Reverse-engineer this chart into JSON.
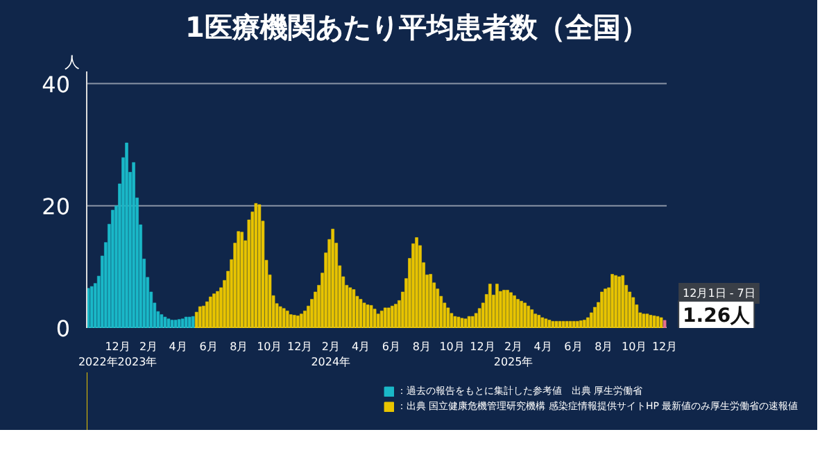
{
  "chart_data": {
    "type": "bar",
    "title": "1医療機関あたり平均患者数（全国）",
    "ylabel": "人",
    "xlim": [
      "2022-09-30",
      "2025-12-05"
    ],
    "ylim": [
      0,
      42
    ],
    "yticks": [
      0,
      20,
      40
    ],
    "xticks": [
      {
        "value": "2022-12-01",
        "label": "12月\n2022年2023年"
      },
      {
        "value": "2023-02-01",
        "label": "2月"
      },
      {
        "value": "2023-04-01",
        "label": "4月"
      },
      {
        "value": "2023-06-01",
        "label": "6月"
      },
      {
        "value": "2023-08-01",
        "label": "8月"
      },
      {
        "value": "2023-10-01",
        "label": "10月"
      },
      {
        "value": "2023-12-01",
        "label": "12月"
      },
      {
        "value": "2024-02-01",
        "label": "2月\n2024年"
      },
      {
        "value": "2024-04-01",
        "label": "4月"
      },
      {
        "value": "2024-06-01",
        "label": "6月"
      },
      {
        "value": "2024-08-01",
        "label": "8月"
      },
      {
        "value": "2024-10-01",
        "label": "10月"
      },
      {
        "value": "2024-12-01",
        "label": "12月"
      },
      {
        "value": "2025-02-01",
        "label": "2月\n2025年"
      },
      {
        "value": "2025-04-01",
        "label": "4月"
      },
      {
        "value": "2025-06-01",
        "label": "6月"
      },
      {
        "value": "2025-08-01",
        "label": "8月"
      },
      {
        "value": "2025-10-01",
        "label": "10月"
      },
      {
        "value": "2025-12-01",
        "label": "12月"
      }
    ],
    "grid": "y",
    "legend": "bottom",
    "series": [
      {
        "name": "：過去の報告をもとに集計した参考値　出典 厚生労働省",
        "color": "#1ab8c8",
        "x": [
          "2022-10-03",
          "2022-10-10",
          "2022-10-17",
          "2022-10-24",
          "2022-10-31",
          "2022-11-07",
          "2022-11-14",
          "2022-11-21",
          "2022-11-28",
          "2022-12-05",
          "2022-12-12",
          "2022-12-19",
          "2022-12-26",
          "2023-01-02",
          "2023-01-09",
          "2023-01-16",
          "2023-01-23",
          "2023-01-30",
          "2023-02-06",
          "2023-02-13",
          "2023-02-20",
          "2023-02-27",
          "2023-03-06",
          "2023-03-13",
          "2023-03-20",
          "2023-03-27",
          "2023-04-03",
          "2023-04-10",
          "2023-04-17",
          "2023-04-24",
          "2023-05-01"
        ],
        "values": [
          6.5,
          6.8,
          7.3,
          8.5,
          11.8,
          14.0,
          17.0,
          19.3,
          20.0,
          23.6,
          27.9,
          30.3,
          25.5,
          27.1,
          21.3,
          16.9,
          11.3,
          8.3,
          5.9,
          4.1,
          2.7,
          2.2,
          1.8,
          1.5,
          1.3,
          1.3,
          1.4,
          1.5,
          1.8,
          1.8,
          1.9
        ]
      },
      {
        "name": "：出典 国立健康危機管理研究機構 感染症情報提供サイトHP 最新値のみ厚生労働省の速報値",
        "color": "#e8c400",
        "x": [
          "2023-05-08",
          "2023-05-15",
          "2023-05-22",
          "2023-05-29",
          "2023-06-05",
          "2023-06-12",
          "2023-06-19",
          "2023-06-26",
          "2023-07-03",
          "2023-07-10",
          "2023-07-17",
          "2023-07-24",
          "2023-07-31",
          "2023-08-07",
          "2023-08-14",
          "2023-08-21",
          "2023-08-28",
          "2023-09-04",
          "2023-09-11",
          "2023-09-18",
          "2023-09-25",
          "2023-10-02",
          "2023-10-09",
          "2023-10-16",
          "2023-10-23",
          "2023-10-30",
          "2023-11-06",
          "2023-11-13",
          "2023-11-20",
          "2023-11-27",
          "2023-12-04",
          "2023-12-11",
          "2023-12-18",
          "2023-12-25",
          "2024-01-01",
          "2024-01-08",
          "2024-01-15",
          "2024-01-22",
          "2024-01-29",
          "2024-02-05",
          "2024-02-12",
          "2024-02-19",
          "2024-02-26",
          "2024-03-04",
          "2024-03-11",
          "2024-03-18",
          "2024-03-25",
          "2024-04-01",
          "2024-04-08",
          "2024-04-15",
          "2024-04-22",
          "2024-04-29",
          "2024-05-06",
          "2024-05-13",
          "2024-05-20",
          "2024-05-27",
          "2024-06-03",
          "2024-06-10",
          "2024-06-17",
          "2024-06-24",
          "2024-07-01",
          "2024-07-08",
          "2024-07-15",
          "2024-07-22",
          "2024-07-29",
          "2024-08-05",
          "2024-08-12",
          "2024-08-19",
          "2024-08-26",
          "2024-09-02",
          "2024-09-09",
          "2024-09-16",
          "2024-09-23",
          "2024-09-30",
          "2024-10-07",
          "2024-10-14",
          "2024-10-21",
          "2024-10-28",
          "2024-11-04",
          "2024-11-11",
          "2024-11-18",
          "2024-11-25",
          "2024-12-02",
          "2024-12-09",
          "2024-12-16",
          "2024-12-23",
          "2024-12-30",
          "2025-01-06",
          "2025-01-13",
          "2025-01-20",
          "2025-01-27",
          "2025-02-03",
          "2025-02-10",
          "2025-02-17",
          "2025-02-24",
          "2025-03-03",
          "2025-03-10",
          "2025-03-17",
          "2025-03-24",
          "2025-03-31",
          "2025-04-07",
          "2025-04-14",
          "2025-04-21",
          "2025-04-28",
          "2025-05-05",
          "2025-05-12",
          "2025-05-19",
          "2025-05-26",
          "2025-06-02",
          "2025-06-09",
          "2025-06-16",
          "2025-06-23",
          "2025-06-30",
          "2025-07-07",
          "2025-07-14",
          "2025-07-21",
          "2025-07-28",
          "2025-08-04",
          "2025-08-11",
          "2025-08-18",
          "2025-08-25",
          "2025-09-01",
          "2025-09-08",
          "2025-09-15",
          "2025-09-22",
          "2025-09-29",
          "2025-10-06",
          "2025-10-13",
          "2025-10-20",
          "2025-10-27",
          "2025-11-03",
          "2025-11-10",
          "2025-11-17",
          "2025-11-24"
        ],
        "values": [
          2.6,
          3.5,
          3.6,
          4.3,
          5.1,
          5.6,
          6.0,
          6.6,
          7.8,
          9.3,
          11.2,
          13.9,
          15.8,
          15.7,
          14.3,
          17.7,
          19.0,
          20.4,
          20.2,
          17.5,
          11.1,
          8.7,
          5.3,
          4.0,
          3.5,
          3.2,
          2.8,
          2.2,
          2.1,
          2.0,
          2.3,
          2.8,
          3.6,
          4.7,
          5.9,
          7.0,
          9.0,
          12.3,
          14.5,
          16.2,
          13.9,
          10.2,
          8.4,
          7.0,
          6.6,
          6.3,
          5.2,
          4.7,
          4.1,
          3.8,
          3.7,
          3.1,
          2.3,
          2.8,
          3.3,
          3.3,
          3.6,
          3.9,
          4.5,
          5.9,
          8.1,
          11.4,
          13.8,
          14.8,
          13.5,
          10.7,
          8.7,
          8.8,
          7.4,
          6.4,
          5.2,
          4.1,
          3.3,
          2.4,
          1.9,
          1.8,
          1.6,
          1.5,
          1.9,
          1.9,
          2.4,
          3.2,
          4.1,
          5.5,
          7.2,
          5.4,
          7.2,
          6.0,
          6.2,
          6.2,
          5.8,
          5.3,
          4.7,
          4.4,
          4.1,
          3.6,
          3.0,
          2.3,
          2.1,
          1.7,
          1.5,
          1.3,
          1.1,
          1.1,
          1.1,
          1.1,
          1.1,
          1.1,
          1.1,
          1.1,
          1.2,
          1.3,
          1.7,
          2.5,
          3.4,
          4.2,
          5.9,
          6.4,
          6.6,
          8.8,
          8.6,
          8.4,
          8.6,
          7.0,
          5.9,
          5.0,
          3.8,
          2.5,
          2.3,
          2.3,
          2.1,
          2.0,
          1.9,
          1.7
        ]
      },
      {
        "color": "#e8708c",
        "x": [
          "2025-12-01"
        ],
        "values": [
          1.26
        ]
      }
    ],
    "annotations": [
      {
        "text": "12月1日 - 7日",
        "x": "2025-12-01",
        "y": 1.26
      },
      {
        "text": "1.26人",
        "x": "2025-12-01",
        "y": 1.26
      }
    ]
  }
}
